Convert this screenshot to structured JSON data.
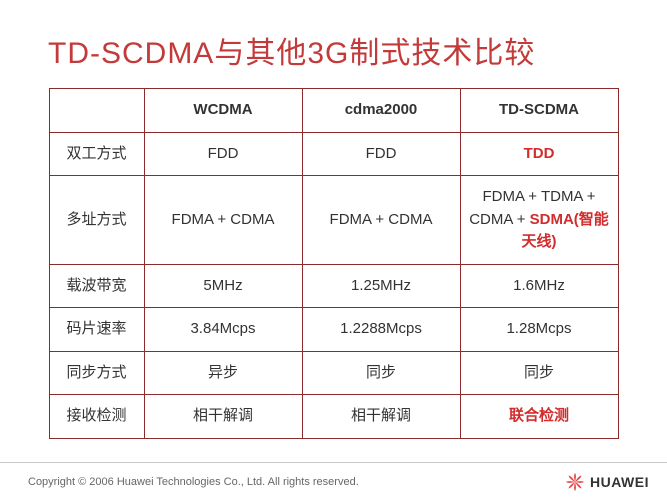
{
  "title": {
    "text": "TD-SCDMA与其他3G制式技术比较",
    "color": "#c23a3a"
  },
  "table": {
    "border_color": "#8b2b2b",
    "text_color": "#333333",
    "highlight_color": "#d22c2c",
    "columns": [
      "",
      "WCDMA",
      "cdma2000",
      "TD-SCDMA"
    ],
    "rows": [
      {
        "label": "双工方式",
        "cells": [
          {
            "text": "FDD",
            "highlight": false
          },
          {
            "text": "FDD",
            "highlight": false
          },
          {
            "text": "TDD",
            "highlight": true
          }
        ]
      },
      {
        "label": "多址方式",
        "cells": [
          {
            "text": "FDMA + CDMA",
            "highlight": false
          },
          {
            "text": "FDMA + CDMA",
            "highlight": false
          },
          {
            "segments": [
              {
                "text": "FDMA + TDMA + CDMA + ",
                "highlight": false
              },
              {
                "text": "SDMA(智能天线)",
                "highlight": true
              }
            ]
          }
        ]
      },
      {
        "label": "载波带宽",
        "cells": [
          {
            "text": "5MHz",
            "highlight": false
          },
          {
            "text": "1.25MHz",
            "highlight": false
          },
          {
            "text": "1.6MHz",
            "highlight": false
          }
        ]
      },
      {
        "label": "码片速率",
        "cells": [
          {
            "text": "3.84Mcps",
            "highlight": false
          },
          {
            "text": "1.2288Mcps",
            "highlight": false
          },
          {
            "text": "1.28Mcps",
            "highlight": false
          }
        ]
      },
      {
        "label": "同步方式",
        "cells": [
          {
            "text": "异步",
            "highlight": false
          },
          {
            "text": "同步",
            "highlight": false
          },
          {
            "text": "同步",
            "highlight": false
          }
        ]
      },
      {
        "label": "接收检测",
        "cells": [
          {
            "text": "相干解调",
            "highlight": false
          },
          {
            "text": "相干解调",
            "highlight": false
          },
          {
            "text": "联合检测",
            "highlight": true
          }
        ]
      }
    ]
  },
  "footer": {
    "copyright": "Copyright © 2006 Huawei Technologies Co., Ltd. All rights reserved.",
    "border_color": "#c9c9c9",
    "text_color": "#666666",
    "logo_text": "HUAWEI",
    "logo_color": "#e24040",
    "logo_text_color": "#333333"
  }
}
